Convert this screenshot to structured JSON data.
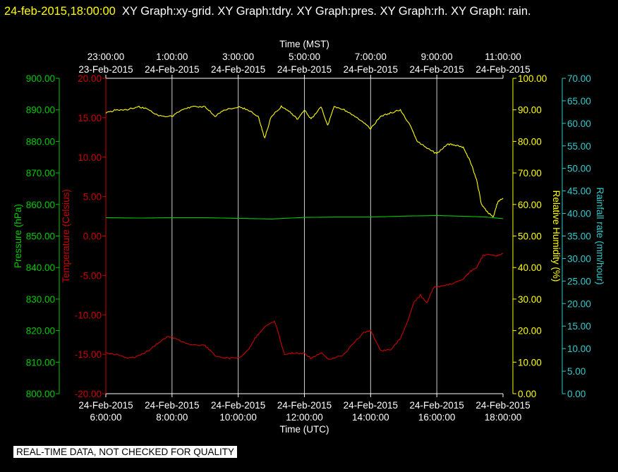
{
  "header": {
    "timestamp": "24-feb-2015,18:00:00",
    "graphs": "XY Graph:xy-grid.  XY Graph:tdry.  XY Graph:pres.  XY Graph:rh.  XY Graph: rain."
  },
  "footer": {
    "quality_notice": "REAL-TIME DATA, NOT CHECKED FOR QUALITY"
  },
  "colors": {
    "pressure": "#00cc00",
    "temperature": "#cc0000",
    "humidity": "#ffff00",
    "rain": "#33cccc",
    "grid": "#ffffff"
  },
  "chart_data": {
    "type": "line",
    "x_bottom": {
      "label": "Time (UTC)",
      "range_hours": [
        6,
        18
      ],
      "ticks": [
        {
          "h": 6,
          "l1": "24-Feb-2015",
          "l2": "6:00:00"
        },
        {
          "h": 8,
          "l1": "24-Feb-2015",
          "l2": "8:00:00"
        },
        {
          "h": 10,
          "l1": "24-Feb-2015",
          "l2": "10:00:00"
        },
        {
          "h": 12,
          "l1": "24-Feb-2015",
          "l2": "12:00:00"
        },
        {
          "h": 14,
          "l1": "24-Feb-2015",
          "l2": "14:00:00"
        },
        {
          "h": 16,
          "l1": "24-Feb-2015",
          "l2": "16:00:00"
        },
        {
          "h": 18,
          "l1": "24-Feb-2015",
          "l2": "18:00:00"
        }
      ]
    },
    "x_top": {
      "label": "Time (MST)",
      "ticks": [
        {
          "h": 6,
          "l1": "23:00:00",
          "l2": "23-Feb-2015"
        },
        {
          "h": 8,
          "l1": "1:00:00",
          "l2": "24-Feb-2015"
        },
        {
          "h": 10,
          "l1": "3:00:00",
          "l2": "24-Feb-2015"
        },
        {
          "h": 12,
          "l1": "5:00:00",
          "l2": "24-Feb-2015"
        },
        {
          "h": 14,
          "l1": "7:00:00",
          "l2": "24-Feb-2015"
        },
        {
          "h": 16,
          "l1": "9:00:00",
          "l2": "24-Feb-2015"
        },
        {
          "h": 18,
          "l1": "11:00:00",
          "l2": "24-Feb-2015"
        }
      ]
    },
    "axes": {
      "pressure": {
        "label": "Pressure (hPa)",
        "range": [
          800,
          900
        ],
        "ticks": [
          "800.00",
          "810.00",
          "820.00",
          "830.00",
          "840.00",
          "850.00",
          "860.00",
          "870.00",
          "880.00",
          "890.00",
          "900.00"
        ]
      },
      "temperature": {
        "label": "Temperature (Celsius)",
        "range": [
          -20,
          20
        ],
        "ticks": [
          "-20.00",
          "-15.00",
          "-10.00",
          "-5.00",
          "0.00",
          "5.00",
          "10.00",
          "15.00",
          "20.00"
        ]
      },
      "humidity": {
        "label": "Relative Humidity (%)",
        "range": [
          0,
          100
        ],
        "ticks": [
          "0.00",
          "10.00",
          "20.00",
          "30.00",
          "40.00",
          "50.00",
          "60.00",
          "70.00",
          "80.00",
          "90.00",
          "100.00"
        ]
      },
      "rain": {
        "label": "Rainfall rate (mm/hour)",
        "range": [
          0,
          70
        ],
        "ticks": [
          "0.00",
          "5.00",
          "10.00",
          "15.00",
          "20.00",
          "25.00",
          "30.00",
          "35.00",
          "40.00",
          "45.00",
          "50.00",
          "55.00",
          "60.00",
          "65.00",
          "70.00"
        ]
      }
    },
    "series": [
      {
        "key": "humidity",
        "x_hours": [
          6.0,
          6.3,
          6.6,
          7.0,
          7.3,
          7.6,
          8.0,
          8.3,
          8.6,
          9.0,
          9.3,
          9.6,
          10.0,
          10.3,
          10.6,
          10.8,
          11.0,
          11.3,
          11.6,
          11.8,
          12.0,
          12.2,
          12.5,
          12.7,
          12.9,
          13.2,
          13.5,
          13.8,
          14.0,
          14.3,
          14.6,
          14.9,
          15.2,
          15.4,
          15.7,
          16.0,
          16.3,
          16.5,
          16.8,
          17.0,
          17.2,
          17.35,
          17.5,
          17.7,
          17.85,
          18.0
        ],
        "values": [
          89,
          90,
          90,
          91,
          90,
          88,
          88,
          90,
          91,
          91,
          88,
          90,
          91,
          90,
          88,
          81,
          88,
          91,
          89,
          87,
          90,
          87,
          91,
          85,
          91,
          90,
          88,
          86,
          84,
          88,
          89,
          90,
          85,
          80,
          78,
          76,
          79,
          79,
          78,
          74,
          68,
          60,
          58,
          56,
          61,
          62
        ]
      },
      {
        "key": "pressure",
        "x_hours": [
          6.0,
          7.0,
          8.0,
          9.0,
          10.0,
          11.0,
          12.0,
          13.0,
          14.0,
          15.0,
          16.0,
          17.0,
          17.5,
          18.0
        ],
        "values": [
          855.8,
          855.7,
          855.8,
          855.8,
          855.6,
          855.4,
          855.9,
          856.0,
          856.0,
          856.3,
          856.5,
          856.2,
          856.0,
          855.5
        ]
      },
      {
        "key": "temperature",
        "x_hours": [
          6.0,
          6.3,
          6.7,
          7.0,
          7.3,
          7.6,
          7.9,
          8.2,
          8.6,
          9.0,
          9.3,
          9.7,
          10.0,
          10.3,
          10.5,
          10.8,
          11.1,
          11.4,
          11.7,
          12.0,
          12.2,
          12.5,
          12.7,
          12.9,
          13.2,
          13.5,
          13.8,
          14.0,
          14.3,
          14.6,
          14.9,
          15.1,
          15.3,
          15.5,
          15.7,
          15.9,
          16.2,
          16.5,
          16.8,
          17.0,
          17.2,
          17.4,
          17.6,
          17.8,
          18.0
        ],
        "values": [
          -14.8,
          -15.0,
          -15.5,
          -15.2,
          -14.5,
          -13.5,
          -12.7,
          -13.2,
          -13.8,
          -13.9,
          -15.2,
          -15.5,
          -15.5,
          -14.5,
          -13.0,
          -11.5,
          -10.8,
          -15.0,
          -14.8,
          -14.9,
          -15.5,
          -14.8,
          -15.6,
          -15.5,
          -15.0,
          -13.5,
          -12.2,
          -12.0,
          -14.5,
          -14.5,
          -13.0,
          -11.0,
          -8.5,
          -7.5,
          -8.5,
          -6.5,
          -6.3,
          -6.0,
          -5.5,
          -4.5,
          -4.0,
          -2.5,
          -2.3,
          -2.5,
          -2.2
        ]
      }
    ]
  }
}
